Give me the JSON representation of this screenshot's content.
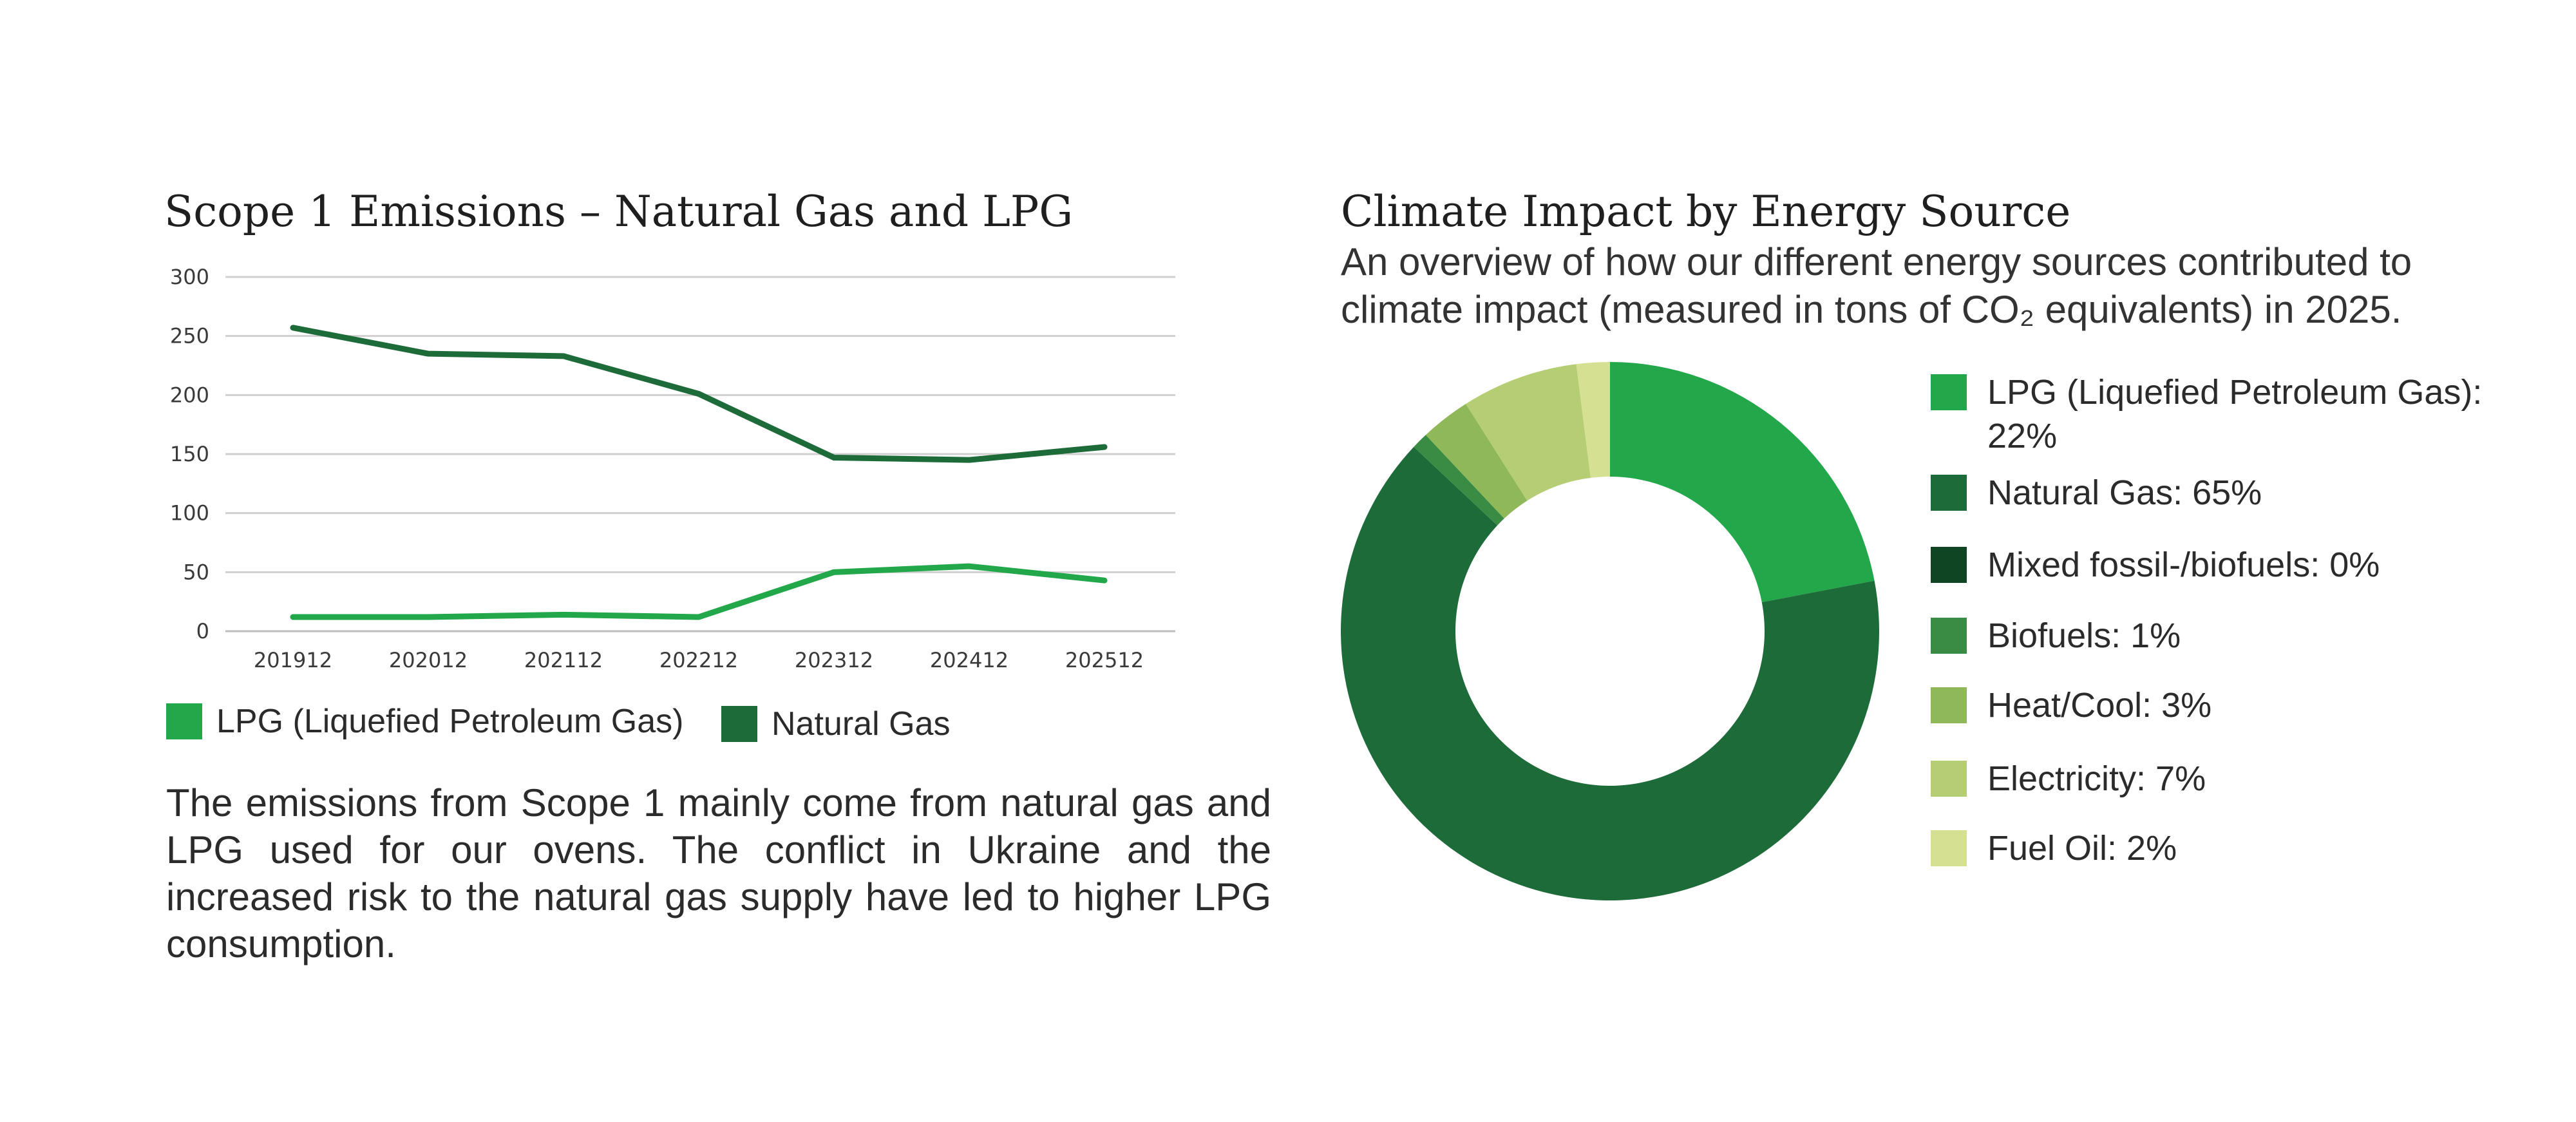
{
  "chart_data": [
    {
      "type": "line",
      "title": "Scope 1 Emissions – Natural Gas and LPG",
      "x": [
        "201912",
        "202012",
        "202112",
        "202212",
        "202312",
        "202412",
        "202512"
      ],
      "ylim": [
        0,
        300
      ],
      "yticks": [
        "300",
        "250",
        "200",
        "150",
        "100",
        "50",
        "0"
      ],
      "grid": true,
      "legend_position": "bottom-left",
      "series": [
        {
          "name": "LPG (Liquefied Petroleum Gas)",
          "color": "#22a84a",
          "values": [
            12,
            12,
            14,
            12,
            50,
            55,
            43
          ]
        },
        {
          "name": "Natural Gas",
          "color": "#1e6b3a",
          "values": [
            257,
            235,
            233,
            201,
            147,
            145,
            156
          ]
        }
      ]
    },
    {
      "type": "pie",
      "title": "Climate Impact by Energy Source",
      "subtitle": "An overview of how our different energy sources contributed to climate impact (measured in tons of CO₂ equivalents) in 2025.",
      "donut": true,
      "legend_position": "right",
      "slices": [
        {
          "label": "LPG (Liquefied Petroleum Gas): 22%",
          "value": 22,
          "color": "#22a84a"
        },
        {
          "label": "Natural Gas: 65%",
          "value": 65,
          "color": "#1e6b3a"
        },
        {
          "label": "Mixed fossil-/biofuels: 0%",
          "value": 0,
          "color": "#0f4523"
        },
        {
          "label": "Biofuels: 1%",
          "value": 1,
          "color": "#3a8c45"
        },
        {
          "label": "Heat/Cool: 3%",
          "value": 3,
          "color": "#8fb858"
        },
        {
          "label": "Electricity: 7%",
          "value": 7,
          "color": "#b5cd73"
        },
        {
          "label": "Fuel Oil: 2%",
          "value": 2,
          "color": "#d6e092"
        }
      ]
    }
  ],
  "text": {
    "body": "The emissions from Scope 1 mainly come from natural gas and LPG used for our ovens. The conflict in Ukraine and the increased risk to the natural gas supply have led to higher LPG consumption."
  }
}
